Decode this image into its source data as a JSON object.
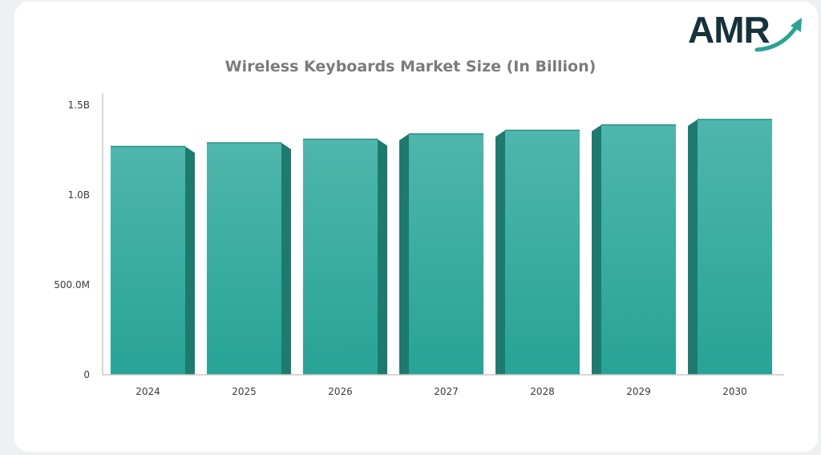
{
  "brand": {
    "logo_text": "AMR"
  },
  "chart_data": {
    "type": "bar",
    "title": "Wireless Keyboards Market Size (In Billion)",
    "xlabel": "",
    "ylabel": "",
    "categories": [
      "2024",
      "2025",
      "2026",
      "2027",
      "2028",
      "2029",
      "2030"
    ],
    "values": [
      1.27,
      1.29,
      1.31,
      1.34,
      1.36,
      1.39,
      1.42
    ],
    "ylim": [
      0,
      1.6
    ],
    "yticks": [
      {
        "value": 0,
        "label": "0"
      },
      {
        "value": 0.5,
        "label": "500.0M"
      },
      {
        "value": 1.0,
        "label": "1.0B"
      },
      {
        "value": 1.5,
        "label": "1.5B"
      }
    ],
    "grid": false,
    "colors": {
      "bar_top": "#4fb6ac",
      "bar_bottom": "#27a396",
      "bar_side": "#1e7a6f",
      "axis": "#c8c8c8"
    }
  }
}
